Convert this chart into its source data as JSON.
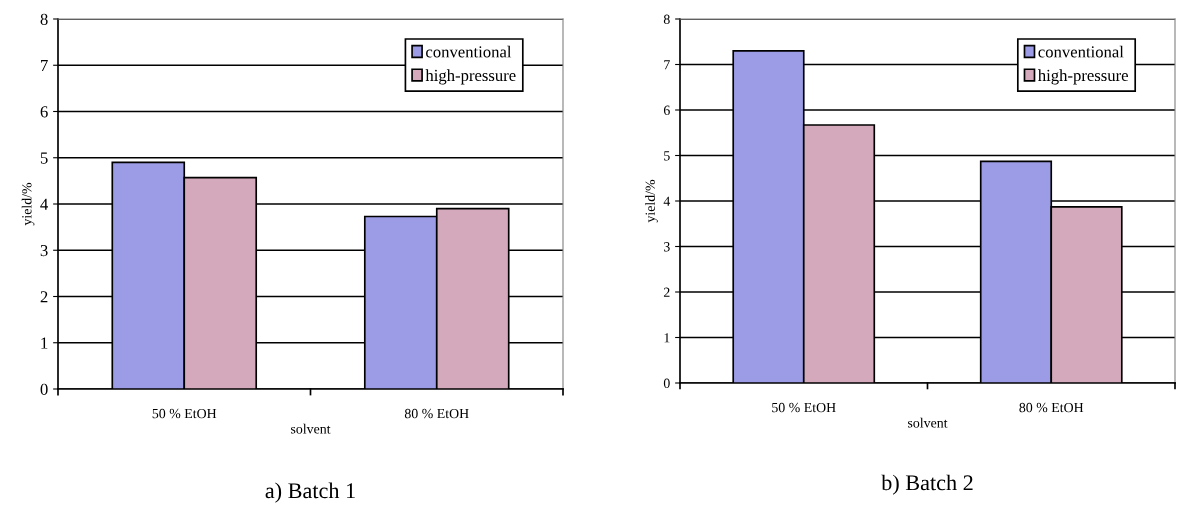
{
  "chart_data": [
    {
      "type": "bar",
      "title": "a) Batch 1",
      "xlabel": "solvent",
      "ylabel": "yield/%",
      "categories": [
        "50 % EtOH",
        "80 % EtOH"
      ],
      "series": [
        {
          "name": "conventional",
          "color": "#9c9ce6",
          "values": [
            4.9,
            3.73
          ]
        },
        {
          "name": "high-pressure",
          "color": "#d4a9bb",
          "values": [
            4.57,
            3.9
          ]
        }
      ],
      "ylim": [
        0,
        8
      ],
      "yticks": [
        0,
        1,
        2,
        3,
        4,
        5,
        6,
        7,
        8
      ],
      "grid": "y",
      "legend": "top right"
    },
    {
      "type": "bar",
      "title": "b) Batch 2",
      "xlabel": "solvent",
      "ylabel": "yield/%",
      "categories": [
        "50 % EtOH",
        "80 % EtOH"
      ],
      "series": [
        {
          "name": "conventional",
          "color": "#9c9ce6",
          "values": [
            7.3,
            4.87
          ]
        },
        {
          "name": "high-pressure",
          "color": "#d4a9bb",
          "values": [
            5.67,
            3.87
          ]
        }
      ],
      "ylim": [
        0,
        8
      ],
      "yticks": [
        0,
        1,
        2,
        3,
        4,
        5,
        6,
        7,
        8
      ],
      "grid": "y",
      "legend": "top right"
    }
  ]
}
